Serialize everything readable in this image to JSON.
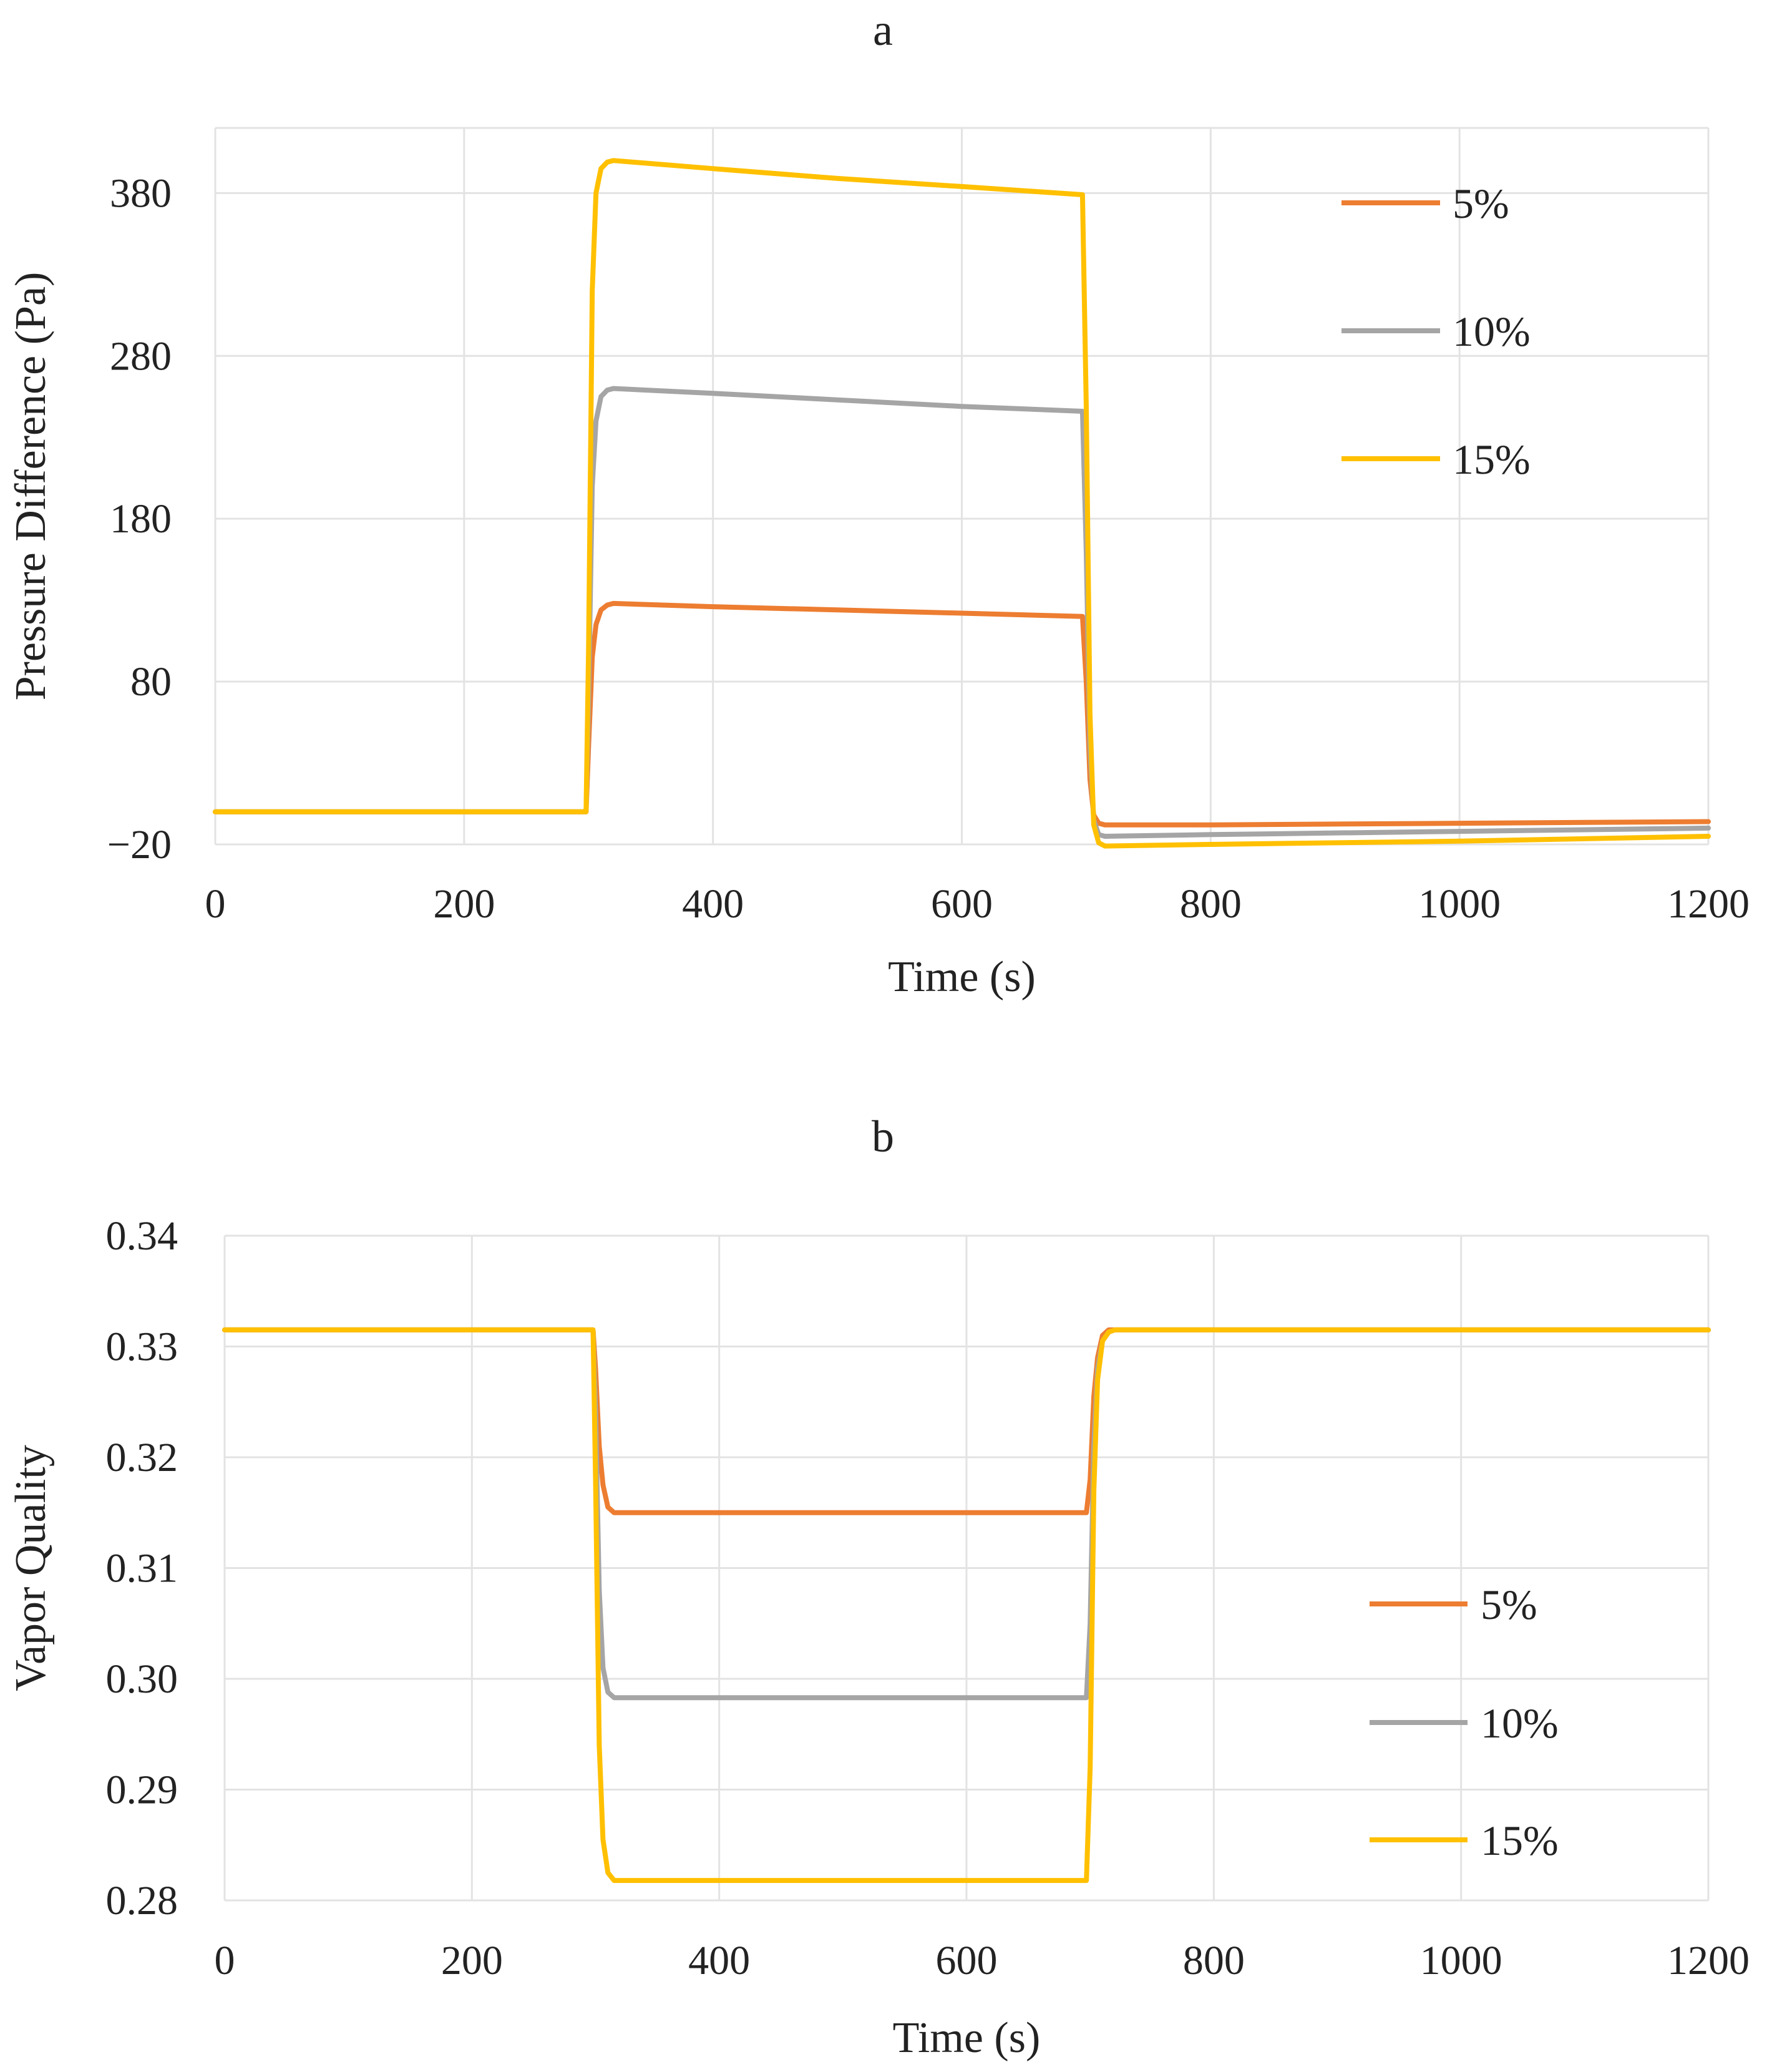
{
  "chart_data": [
    {
      "type": "line",
      "panel_label": "a",
      "xlabel": "Time (s)",
      "ylabel": "Pressure Difference (Pa)",
      "xlim": [
        0,
        1200
      ],
      "ylim": [
        -20,
        420
      ],
      "x_ticks": [
        0,
        200,
        400,
        600,
        800,
        1000,
        1200
      ],
      "x_tick_labels": [
        "0",
        "200",
        "400",
        "600",
        "800",
        "1000",
        "1200"
      ],
      "y_ticks": [
        -20,
        80,
        180,
        280,
        380
      ],
      "y_tick_labels": [
        "−20",
        "80",
        "180",
        "280",
        "380"
      ],
      "grid": true,
      "legend": {
        "position": "top-right",
        "entries": [
          "5%",
          "10%",
          "15%"
        ]
      },
      "series": [
        {
          "name": "5%",
          "color": "#ED7D31",
          "x": [
            0,
            298,
            300,
            303,
            306,
            310,
            315,
            320,
            400,
            500,
            600,
            697,
            700,
            703,
            706,
            710,
            715,
            800,
            1000,
            1200
          ],
          "y": [
            0,
            0,
            40,
            95,
            115,
            124,
            127,
            128,
            126,
            124,
            122,
            120,
            80,
            20,
            -2,
            -7,
            -8,
            -8,
            -7,
            -6
          ]
        },
        {
          "name": "10%",
          "color": "#A5A5A5",
          "x": [
            0,
            298,
            300,
            303,
            306,
            310,
            315,
            320,
            400,
            500,
            600,
            697,
            700,
            703,
            706,
            710,
            715,
            800,
            1000,
            1200
          ],
          "y": [
            0,
            0,
            70,
            200,
            240,
            255,
            259,
            260,
            257,
            253,
            249,
            246,
            160,
            40,
            -5,
            -14,
            -15,
            -14,
            -12,
            -10
          ]
        },
        {
          "name": "15%",
          "color": "#FFC000",
          "x": [
            0,
            298,
            300,
            303,
            306,
            310,
            315,
            320,
            400,
            500,
            600,
            697,
            700,
            703,
            706,
            710,
            715,
            800,
            1000,
            1200
          ],
          "y": [
            0,
            0,
            100,
            320,
            380,
            395,
            399,
            400,
            395,
            389,
            384,
            379,
            250,
            60,
            -8,
            -19,
            -21,
            -20,
            -18,
            -15
          ]
        }
      ]
    },
    {
      "type": "line",
      "panel_label": "b",
      "xlabel": "Time (s)",
      "ylabel": "Vapor Quality",
      "xlim": [
        0,
        1200
      ],
      "ylim": [
        0.28,
        0.34
      ],
      "x_ticks": [
        0,
        200,
        400,
        600,
        800,
        1000,
        1200
      ],
      "x_tick_labels": [
        "0",
        "200",
        "400",
        "600",
        "800",
        "1000",
        "1200"
      ],
      "y_ticks": [
        0.28,
        0.29,
        0.3,
        0.31,
        0.32,
        0.33,
        0.34
      ],
      "y_tick_labels": [
        "0.28",
        "0.29",
        "0.30",
        "0.31",
        "0.32",
        "0.33",
        "0.34"
      ],
      "grid": true,
      "legend": {
        "position": "bottom-right",
        "entries": [
          "5%",
          "10%",
          "15%"
        ]
      },
      "series": [
        {
          "name": "5%",
          "color": "#ED7D31",
          "x": [
            0,
            298,
            300,
            303,
            306,
            310,
            315,
            320,
            400,
            600,
            697,
            700,
            703,
            706,
            710,
            715,
            720,
            800,
            1000,
            1200
          ],
          "y": [
            0.3315,
            0.3315,
            0.328,
            0.321,
            0.3175,
            0.3155,
            0.315,
            0.315,
            0.315,
            0.315,
            0.315,
            0.318,
            0.3255,
            0.329,
            0.331,
            0.3315,
            0.3315,
            0.3315,
            0.3315,
            0.3315
          ]
        },
        {
          "name": "10%",
          "color": "#A5A5A5",
          "x": [
            0,
            298,
            300,
            303,
            306,
            310,
            315,
            320,
            400,
            600,
            697,
            700,
            703,
            706,
            710,
            715,
            720,
            800,
            1000,
            1200
          ],
          "y": [
            0.3315,
            0.3315,
            0.324,
            0.308,
            0.301,
            0.2988,
            0.2983,
            0.2983,
            0.2983,
            0.2983,
            0.2983,
            0.305,
            0.321,
            0.328,
            0.3305,
            0.3313,
            0.3315,
            0.3315,
            0.3315,
            0.3315
          ]
        },
        {
          "name": "15%",
          "color": "#FFC000",
          "x": [
            0,
            298,
            300,
            303,
            306,
            310,
            315,
            320,
            400,
            600,
            697,
            700,
            703,
            706,
            710,
            715,
            720,
            800,
            1000,
            1200
          ],
          "y": [
            0.3315,
            0.3315,
            0.318,
            0.294,
            0.2855,
            0.2825,
            0.2818,
            0.2818,
            0.2818,
            0.2818,
            0.2818,
            0.292,
            0.317,
            0.327,
            0.3305,
            0.3313,
            0.3315,
            0.3315,
            0.3315,
            0.3315
          ]
        }
      ]
    }
  ]
}
